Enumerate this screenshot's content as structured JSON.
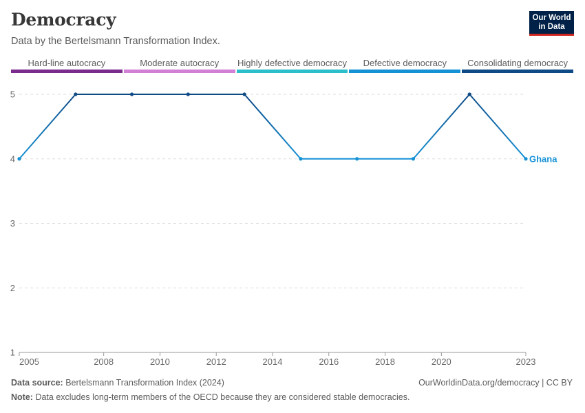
{
  "header": {
    "title": "Democracy",
    "subtitle": "Data by the Bertelsmann Transformation Index."
  },
  "logo": {
    "line1": "Our World",
    "line2": "in Data"
  },
  "legend": [
    {
      "label": "Hard-line autocracy",
      "color": "#7b2a8e"
    },
    {
      "label": "Moderate autocracy",
      "color": "#d27fd6"
    },
    {
      "label": "Highly defective democracy",
      "color": "#2bc0c9"
    },
    {
      "label": "Defective democracy",
      "color": "#1591d6"
    },
    {
      "label": "Consolidating democracy",
      "color": "#0e4a86"
    }
  ],
  "chart_data": {
    "type": "line",
    "title": "Democracy",
    "xlabel": "",
    "ylabel": "",
    "xlim": [
      2005,
      2023
    ],
    "ylim": [
      1,
      5
    ],
    "x_ticks": [
      2005,
      2008,
      2010,
      2012,
      2014,
      2016,
      2018,
      2020,
      2023
    ],
    "y_ticks": [
      1,
      2,
      3,
      4,
      5
    ],
    "grid": true,
    "series": [
      {
        "name": "Ghana",
        "x": [
          2005,
          2007,
          2009,
          2011,
          2013,
          2015,
          2017,
          2019,
          2021,
          2023
        ],
        "values": [
          4,
          5,
          5,
          5,
          5,
          4,
          4,
          4,
          5,
          4
        ],
        "color_high": "#0e4a86",
        "color_low": "#1591d6"
      }
    ]
  },
  "footer": {
    "source_label": "Data source:",
    "source_text": "Bertelsmann Transformation Index (2024)",
    "link_text": "OurWorldinData.org/democracy | CC BY",
    "note_label": "Note:",
    "note_text": "Data excludes long-term members of the OECD because they are considered stable democracies."
  }
}
